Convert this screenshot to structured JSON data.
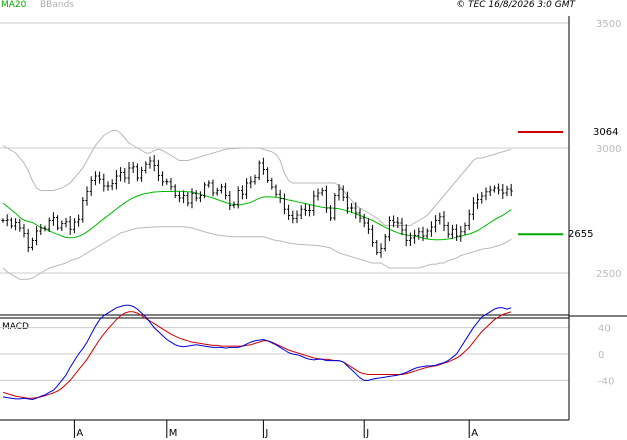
{
  "legend": {
    "ma_label": "MA20",
    "bb_label": "BBands",
    "ma_color": "#00bb00",
    "bb_color": "#b8b8b8"
  },
  "copyright": "© TEC 16/8/2026 3:0 GMT",
  "colors": {
    "price_bars": "#000000",
    "macd_line": "#0000dd",
    "signal_line": "#cc0000",
    "resistance": "#cc0000",
    "support": "#00aa00",
    "grid": "#cccccc",
    "axis": "#000000"
  },
  "chart_data": [
    {
      "type": "ohlc",
      "series": [
        {
          "name": "MA20",
          "values": [
            2780,
            2766,
            2752,
            2739,
            2723,
            2712,
            2706,
            2702,
            2692,
            2682,
            2676,
            2669,
            2661,
            2655,
            2648,
            2642,
            2641,
            2642,
            2647,
            2654,
            2665,
            2677,
            2690,
            2704,
            2717,
            2730,
            2743,
            2756,
            2769,
            2781,
            2792,
            2801,
            2808,
            2814,
            2818,
            2821,
            2824,
            2825,
            2826,
            2826,
            2826,
            2827,
            2827,
            2826,
            2825,
            2824,
            2820,
            2815,
            2810,
            2805,
            2800,
            2794,
            2788,
            2782,
            2777,
            2774,
            2772,
            2774,
            2778,
            2783,
            2791,
            2799,
            2804,
            2805,
            2804,
            2803,
            2800,
            2796,
            2792,
            2789,
            2785,
            2781,
            2778,
            2774,
            2770,
            2766,
            2763,
            2761,
            2760,
            2759,
            2757,
            2753,
            2748,
            2743,
            2737,
            2730,
            2724,
            2717,
            2710,
            2701,
            2692,
            2683,
            2675,
            2668,
            2661,
            2656,
            2652,
            2650,
            2648,
            2645,
            2640,
            2636,
            2634,
            2633,
            2633,
            2634,
            2636,
            2639,
            2643,
            2647,
            2652,
            2656,
            2662,
            2670,
            2680,
            2691,
            2702,
            2713,
            2722,
            2731,
            2742,
            2754
          ]
        },
        {
          "name": "BBands upper",
          "values": [
            3010,
            3000,
            2990,
            2980,
            2960,
            2940,
            2910,
            2870,
            2840,
            2830,
            2830,
            2830,
            2830,
            2835,
            2840,
            2850,
            2860,
            2880,
            2900,
            2920,
            2950,
            2980,
            3010,
            3030,
            3050,
            3060,
            3070,
            3070,
            3060,
            3040,
            3020,
            3010,
            3000,
            2990,
            2980,
            2980,
            2990,
            2995,
            2990,
            2980,
            2970,
            2960,
            2950,
            2950,
            2950,
            2955,
            2960,
            2965,
            2970,
            2975,
            2980,
            2985,
            2990,
            2995,
            2997,
            2998,
            2999,
            3000,
            3000,
            3000,
            3000,
            3000,
            2995,
            2990,
            2985,
            2975,
            2950,
            2900,
            2870,
            2860,
            2860,
            2860,
            2860,
            2860,
            2860,
            2860,
            2860,
            2860,
            2860,
            2860,
            2850,
            2830,
            2810,
            2790,
            2770,
            2760,
            2750,
            2740,
            2730,
            2720,
            2705,
            2690,
            2690,
            2690,
            2690,
            2690,
            2690,
            2690,
            2700,
            2710,
            2720,
            2730,
            2750,
            2770,
            2790,
            2810,
            2830,
            2850,
            2870,
            2890,
            2910,
            2930,
            2950,
            2960,
            2960,
            2965,
            2970,
            2975,
            2980,
            2985,
            2990,
            2995
          ]
        },
        {
          "name": "BBands lower",
          "values": [
            2520,
            2505,
            2495,
            2485,
            2475,
            2475,
            2475,
            2480,
            2490,
            2500,
            2510,
            2520,
            2525,
            2530,
            2535,
            2540,
            2550,
            2555,
            2560,
            2570,
            2580,
            2590,
            2600,
            2610,
            2620,
            2630,
            2640,
            2650,
            2660,
            2665,
            2670,
            2675,
            2680,
            2680,
            2682,
            2683,
            2684,
            2685,
            2685,
            2685,
            2685,
            2685,
            2685,
            2685,
            2683,
            2680,
            2675,
            2670,
            2665,
            2660,
            2656,
            2652,
            2650,
            2648,
            2646,
            2645,
            2645,
            2645,
            2645,
            2645,
            2645,
            2645,
            2645,
            2640,
            2635,
            2630,
            2628,
            2625,
            2620,
            2618,
            2615,
            2614,
            2613,
            2612,
            2611,
            2610,
            2607,
            2604,
            2600,
            2590,
            2580,
            2575,
            2570,
            2565,
            2560,
            2555,
            2550,
            2545,
            2540,
            2540,
            2540,
            2530,
            2520,
            2520,
            2520,
            2520,
            2520,
            2520,
            2520,
            2520,
            2525,
            2530,
            2535,
            2535,
            2540,
            2540,
            2550,
            2555,
            2560,
            2570,
            2575,
            2580,
            2585,
            2590,
            2595,
            2598,
            2600,
            2605,
            2610,
            2615,
            2625,
            2635
          ]
        },
        {
          "name": "close",
          "values": [
            2710,
            2712,
            2688,
            2702,
            2680,
            2658,
            2602,
            2630,
            2668,
            2680,
            2676,
            2710,
            2722,
            2680,
            2698,
            2705,
            2675,
            2704,
            2715,
            2790,
            2826,
            2870,
            2888,
            2875,
            2848,
            2848,
            2858,
            2888,
            2902,
            2880,
            2920,
            2925,
            2880,
            2910,
            2935,
            2948,
            2930,
            2890,
            2865,
            2865,
            2845,
            2810,
            2800,
            2810,
            2780,
            2818,
            2800,
            2810,
            2852,
            2860,
            2820,
            2830,
            2845,
            2810,
            2770,
            2775,
            2830,
            2815,
            2860,
            2865,
            2882,
            2940,
            2914,
            2870,
            2844,
            2815,
            2798,
            2755,
            2730,
            2718,
            2732,
            2755,
            2750,
            2750,
            2808,
            2820,
            2830,
            2760,
            2720,
            2810,
            2835,
            2803,
            2760,
            2760,
            2740,
            2720,
            2700,
            2675,
            2622,
            2582,
            2598,
            2645,
            2710,
            2703,
            2700,
            2672,
            2630,
            2640,
            2650,
            2665,
            2648,
            2668,
            2684,
            2710,
            2725,
            2690,
            2655,
            2675,
            2648,
            2665,
            2690,
            2735,
            2780,
            2794,
            2808,
            2825,
            2832,
            2840,
            2832,
            2820,
            2836,
            2828
          ]
        }
      ],
      "xlabel": "",
      "ylabel": "",
      "x_ticks": [
        "A",
        "M",
        "J",
        "J",
        "A"
      ],
      "y_ticks": [
        2500,
        3000,
        3500
      ],
      "ylim": [
        2385,
        3560
      ],
      "annotations": [
        {
          "label": "3064",
          "value": 3064,
          "role": "resistance"
        },
        {
          "label": "2655",
          "value": 2655,
          "role": "support"
        }
      ]
    },
    {
      "type": "line",
      "title": "MACD",
      "series": [
        {
          "name": "MACD",
          "values": [
            -65,
            -66,
            -67,
            -68,
            -68,
            -67,
            -68,
            -69,
            -67,
            -64,
            -62,
            -58,
            -55,
            -48,
            -40,
            -32,
            -20,
            -10,
            0,
            8,
            18,
            30,
            42,
            52,
            58,
            62,
            66,
            70,
            72,
            74,
            74,
            72,
            68,
            62,
            56,
            48,
            40,
            34,
            28,
            22,
            18,
            14,
            12,
            11,
            12,
            13,
            14,
            13,
            12,
            11,
            10,
            10,
            10,
            9,
            10,
            10,
            10,
            12,
            15,
            18,
            20,
            21,
            22,
            20,
            17,
            14,
            10,
            6,
            2,
            0,
            -1,
            -3,
            -6,
            -8,
            -9,
            -8,
            -8,
            -10,
            -10,
            -10,
            -10,
            -12,
            -18,
            -24,
            -30,
            -36,
            -40,
            -40,
            -38,
            -37,
            -36,
            -35,
            -34,
            -33,
            -32,
            -30,
            -28,
            -25,
            -22,
            -20,
            -19,
            -18,
            -18,
            -17,
            -15,
            -13,
            -10,
            -5,
            0,
            10,
            20,
            30,
            40,
            48,
            56,
            60,
            64,
            68,
            70,
            70,
            68,
            70
          ]
        },
        {
          "name": "Signal",
          "values": [
            -58,
            -60,
            -62,
            -64,
            -65,
            -66,
            -67,
            -67,
            -66,
            -65,
            -63,
            -61,
            -59,
            -56,
            -52,
            -46,
            -40,
            -32,
            -24,
            -16,
            -8,
            2,
            12,
            22,
            30,
            38,
            45,
            52,
            58,
            62,
            64,
            64,
            62,
            58,
            54,
            50,
            46,
            42,
            38,
            34,
            30,
            27,
            24,
            22,
            20,
            18,
            17,
            16,
            15,
            14,
            13,
            13,
            12,
            12,
            12,
            12,
            12,
            12,
            13,
            14,
            16,
            18,
            20,
            20,
            18,
            15,
            12,
            9,
            6,
            4,
            2,
            0,
            -2,
            -4,
            -6,
            -7,
            -8,
            -8,
            -9,
            -10,
            -10,
            -12,
            -16,
            -20,
            -24,
            -28,
            -30,
            -31,
            -31,
            -31,
            -31,
            -31,
            -31,
            -31,
            -31,
            -31,
            -30,
            -28,
            -26,
            -24,
            -22,
            -20,
            -19,
            -18,
            -16,
            -14,
            -12,
            -9,
            -6,
            -2,
            4,
            10,
            18,
            26,
            34,
            40,
            46,
            52,
            56,
            60,
            62,
            64
          ]
        }
      ],
      "y_ticks": [
        -40,
        0,
        40
      ],
      "y_tick_labels": [
        "-40",
        "0",
        "40"
      ],
      "ylim": [
        -80,
        90
      ]
    }
  ]
}
